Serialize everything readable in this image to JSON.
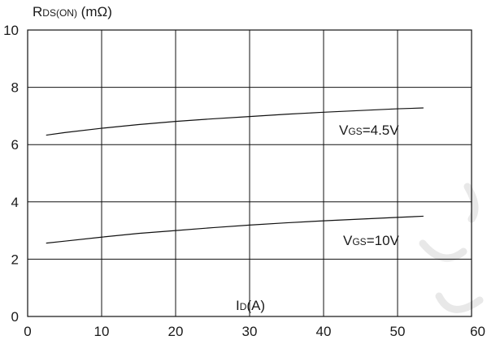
{
  "chart_data": {
    "type": "line",
    "ylabel": {
      "main": "R",
      "sub": "DS(ON)",
      "unit": " (mΩ)"
    },
    "xlabel": {
      "main": "I",
      "sub": "D",
      "unit": "(A)"
    },
    "xlim": [
      0,
      60
    ],
    "ylim": [
      0,
      10
    ],
    "x_ticks": [
      "0",
      "10",
      "20",
      "30",
      "40",
      "50",
      "60"
    ],
    "y_ticks": [
      "0",
      "2",
      "4",
      "6",
      "8",
      "10"
    ],
    "grid": true,
    "series": [
      {
        "name": "VGS=4.5V",
        "label": {
          "main": "V",
          "sub": "GS",
          "rest": "=4.5V"
        },
        "x": [
          2.5,
          5,
          10,
          15,
          20,
          25,
          30,
          35,
          40,
          45,
          50,
          53.5
        ],
        "y": [
          6.33,
          6.42,
          6.57,
          6.7,
          6.81,
          6.9,
          6.98,
          7.06,
          7.13,
          7.19,
          7.25,
          7.28
        ]
      },
      {
        "name": "VGS=10V",
        "label": {
          "main": "V",
          "sub": "GS",
          "rest": "=10V"
        },
        "x": [
          2.5,
          5,
          10,
          15,
          20,
          25,
          30,
          35,
          40,
          45,
          50,
          53.5
        ],
        "y": [
          2.56,
          2.63,
          2.77,
          2.9,
          3.0,
          3.1,
          3.19,
          3.27,
          3.34,
          3.4,
          3.46,
          3.5
        ]
      }
    ]
  }
}
